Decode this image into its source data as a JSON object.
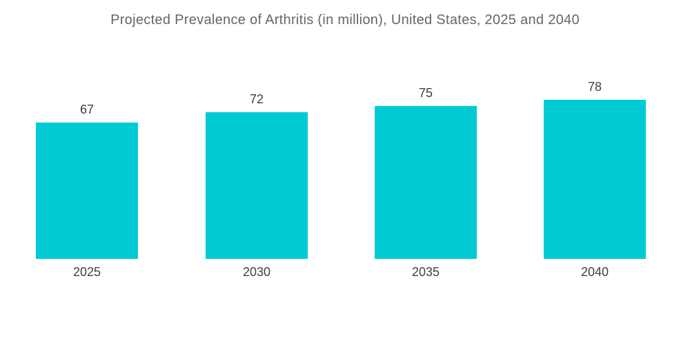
{
  "chart_data": {
    "type": "bar",
    "title": "Projected Prevalence of Arthritis (in million), United States, 2025 and 2040",
    "categories": [
      "2025",
      "2030",
      "2035",
      "2040"
    ],
    "values": [
      67,
      72,
      75,
      78
    ],
    "xlabel": "",
    "ylabel": "",
    "ylim": [
      0,
      85
    ],
    "grid": false,
    "legend": false,
    "value_labels_shown": true,
    "colors": {
      "bar": "#00CBD4",
      "title_text": "#63666A",
      "label_text": "#3E4043",
      "background": "#FFFFFF"
    }
  }
}
